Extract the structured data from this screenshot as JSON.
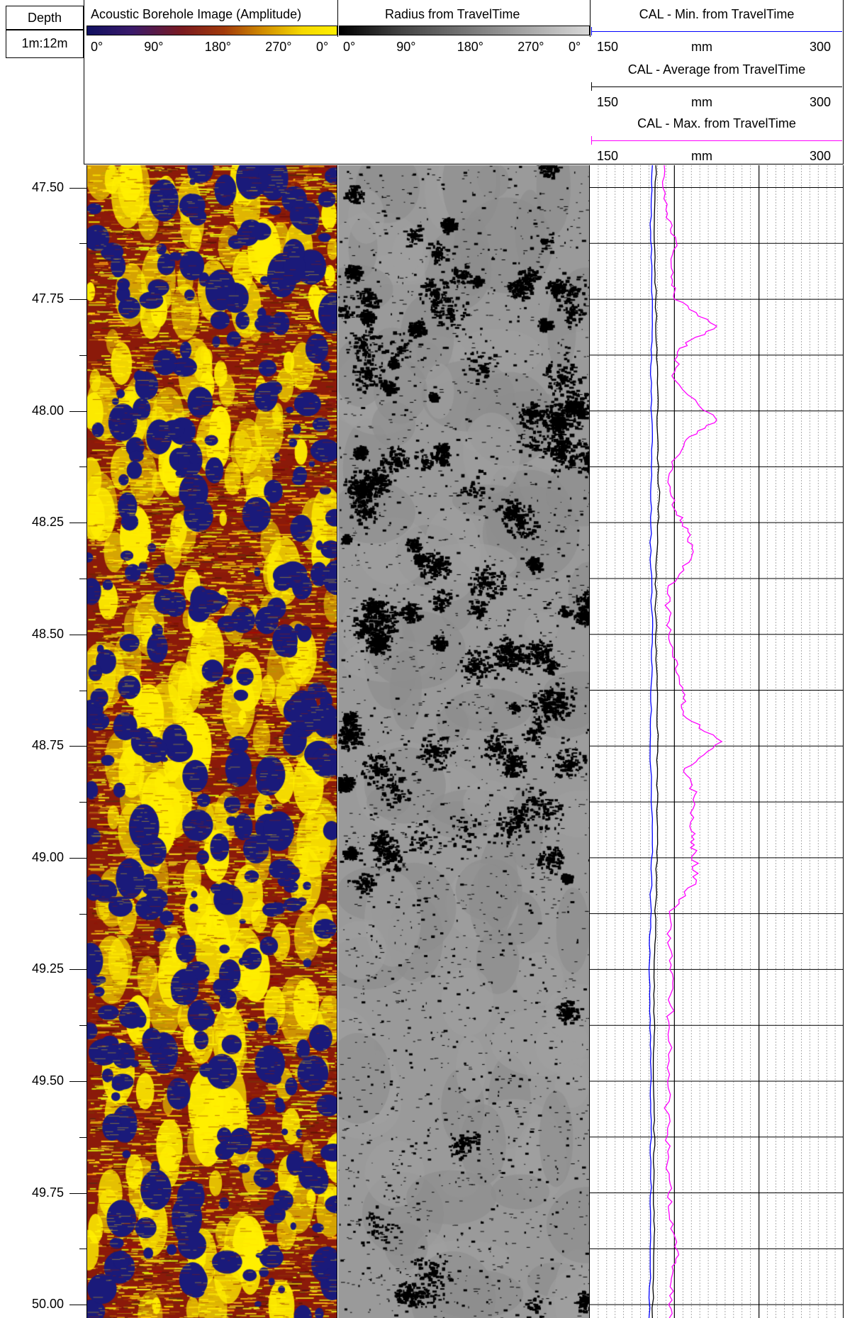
{
  "depth_column": {
    "title": "Depth",
    "scale": "1m:12m"
  },
  "tracks": {
    "amplitude": {
      "title": "Acoustic Borehole Image (Amplitude)",
      "ticks": [
        "0°",
        "90°",
        "180°",
        "270°",
        "0°"
      ],
      "palette": [
        "#1a1a7a",
        "#8b1a0a",
        "#ffef00"
      ]
    },
    "radius": {
      "title": "Radius from TravelTime",
      "ticks": [
        "0°",
        "90°",
        "180°",
        "270°",
        "0°"
      ],
      "palette": [
        "#000000",
        "#9a9a9a"
      ]
    },
    "caliper": {
      "curves": [
        {
          "title": "CAL - Min. from TravelTime",
          "min": "150",
          "unit": "mm",
          "max": "300",
          "color": "#0000ff"
        },
        {
          "title": "CAL - Average from TravelTime",
          "min": "150",
          "unit": "mm",
          "max": "300",
          "color": "#000000"
        },
        {
          "title": "CAL - Max. from TravelTime",
          "min": "150",
          "unit": "mm",
          "max": "300",
          "color": "#ff00ff"
        }
      ]
    }
  },
  "chart_data": {
    "type": "line",
    "depth_unit": "m",
    "depth_range": [
      47.45,
      50.03
    ],
    "depth_labels": [
      "47.50",
      "47.75",
      "48.00",
      "48.25",
      "48.50",
      "48.75",
      "49.00",
      "49.25",
      "49.50",
      "49.75",
      "50.00"
    ],
    "x_range_mm": [
      150,
      300
    ],
    "series": [
      {
        "name": "CAL - Min. from TravelTime",
        "color": "#0000ff",
        "depth": [
          47.45,
          47.6,
          47.75,
          47.9,
          48.05,
          48.2,
          48.35,
          48.5,
          48.65,
          48.8,
          48.95,
          49.1,
          49.25,
          49.4,
          49.55,
          49.7,
          49.85,
          50.03
        ],
        "values": [
          187,
          186,
          187,
          186,
          187,
          186,
          186,
          187,
          186,
          186,
          187,
          186,
          185,
          186,
          186,
          186,
          186,
          185
        ]
      },
      {
        "name": "CAL - Average from TravelTime",
        "color": "#000000",
        "depth": [
          47.45,
          47.6,
          47.75,
          47.9,
          48.05,
          48.2,
          48.35,
          48.5,
          48.65,
          48.8,
          48.95,
          49.1,
          49.25,
          49.4,
          49.55,
          49.7,
          49.85,
          50.03
        ],
        "values": [
          189,
          188,
          189,
          190,
          190,
          191,
          189,
          189,
          190,
          190,
          190,
          189,
          188,
          188,
          188,
          188,
          188,
          187
        ]
      },
      {
        "name": "CAL - Max. from TravelTime",
        "color": "#ff00ff",
        "depth": [
          47.45,
          47.55,
          47.62,
          47.7,
          47.75,
          47.81,
          47.86,
          47.93,
          48.02,
          48.07,
          48.14,
          48.22,
          48.27,
          48.33,
          48.4,
          48.47,
          48.55,
          48.62,
          48.68,
          48.74,
          48.8,
          48.86,
          48.94,
          48.99,
          49.05,
          49.12,
          49.2,
          49.28,
          49.38,
          49.5,
          49.62,
          49.72,
          49.8,
          49.88,
          49.95,
          50.03
        ],
        "values": [
          194,
          195,
          201,
          198,
          200,
          225,
          203,
          200,
          225,
          206,
          197,
          200,
          208,
          210,
          196,
          197,
          199,
          205,
          205,
          228,
          206,
          212,
          210,
          212,
          213,
          197,
          197,
          199,
          197,
          196,
          196,
          197,
          197,
          202,
          198,
          197
        ]
      }
    ]
  }
}
